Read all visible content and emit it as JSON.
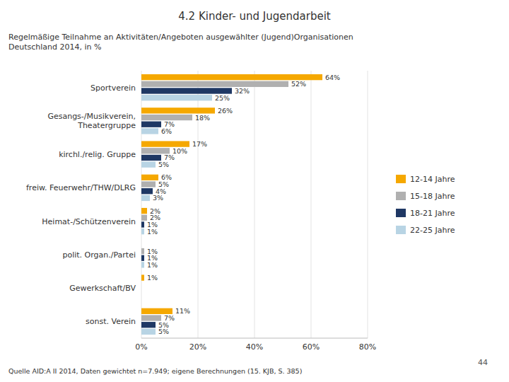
{
  "chart_data": {
    "type": "bar",
    "orientation": "horizontal",
    "title": "4.2 Kinder- und Jugendarbeit",
    "subtitle": "Regelmäßige Teilnahme an Aktivitäten/Angeboten ausgewählter (Jugend)Organisationen\nDeutschland 2014, in %",
    "annotations": [
      "Quelle AID:A II 2014,  Daten gewichtet n=7.949; eigene Berechnungen (15. KJB, S. 385)",
      "44"
    ],
    "categories": [
      "Sportverein",
      "Gesangs-/Musikverein,\nTheatergruppe",
      "kirchl./relig. Gruppe",
      "freiw. Feuerwehr/THW/DLRG",
      "Heimat-/Schützenverein",
      "polit. Organ./Partei",
      "Gewerkschaft/BV",
      "sonst. Verein"
    ],
    "series": [
      {
        "name": "12-14 Jahre",
        "color": "#F5A800",
        "values": [
          64,
          26,
          17,
          6,
          2,
          0,
          1,
          11
        ],
        "value_labels": [
          "64%",
          "26%",
          "17%",
          "6%",
          "2%",
          null,
          "1%",
          "11%"
        ]
      },
      {
        "name": "15-18 Jahre",
        "color": "#B0B0B0",
        "values": [
          52,
          18,
          10,
          5,
          2,
          1,
          0,
          7
        ],
        "value_labels": [
          "52%",
          "18%",
          "10%",
          "5%",
          "2%",
          "1%",
          null,
          "7%"
        ]
      },
      {
        "name": "18-21 Jahre",
        "color": "#1F3864",
        "values": [
          32,
          7,
          7,
          4,
          1,
          1,
          0,
          5
        ],
        "value_labels": [
          "32%",
          "7%",
          "7%",
          "4%",
          "1%",
          "1%",
          null,
          "5%"
        ]
      },
      {
        "name": "22-25 Jahre",
        "color": "#B8D4E4",
        "values": [
          25,
          6,
          5,
          3,
          1,
          1,
          0,
          5
        ],
        "value_labels": [
          "25%",
          "6%",
          "5%",
          "3%",
          "1%",
          "1%",
          null,
          "5%"
        ]
      }
    ],
    "xlim": [
      0,
      80
    ],
    "xticks": [
      {
        "value": 0,
        "label": "0%"
      },
      {
        "value": 20,
        "label": "20%"
      },
      {
        "value": 40,
        "label": "40%"
      },
      {
        "value": 60,
        "label": "60%"
      },
      {
        "value": 80,
        "label": "80%"
      }
    ],
    "grid": true,
    "legend": "right",
    "data_labels": true
  }
}
